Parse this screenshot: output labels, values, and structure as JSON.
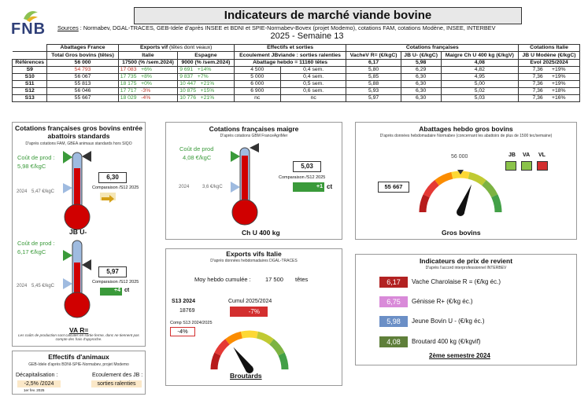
{
  "header": {
    "logo": "FNB",
    "title": "Indicateurs de marché viande bovine",
    "sources_label": "Sources",
    "sources_text": " : Normabev, DGAL-TRACES, GEB-Idele d'après INSEE et BDNI et SPIE-Normabev-Bovex (projet Modemo), cotations FAM, cotations Modène, INSEE, INTERBEV",
    "week": "2025 - Semaine 13"
  },
  "table": {
    "group_headers": {
      "abattages": "Abattages France",
      "exports": "Exports vif",
      "exports_sub": "(têtes dont veaux)",
      "effectifs": "Effectifs et sorties",
      "cot_fr": "Cotations françaises",
      "cot_it": "Cotations Italie"
    },
    "col_headers": {
      "abattages": "Total Gros bovins (têtes)",
      "italie": "Italie",
      "espagne": "Espagne",
      "ecoulement": "Ecoulement JBviande : sorties ralenties",
      "vache": "VacheV R= (€/kgC)",
      "jb": "JB U- (€/kgC)",
      "maigre": "Maigre Ch U 400 kg (€/kgV)",
      "modene": "JB U Modène (€/kgC)"
    },
    "ref": {
      "label": "Références",
      "abattages": "56 000",
      "italie": "17500 (% /sem.2024)",
      "espagne": "9000 (% /sem.2024)",
      "ecoulement": "Abattage hebdo = 11160 têtes",
      "vache": "6,17",
      "jb": "5,98",
      "maigre": "4,08",
      "modene": "Evol 2025/2024"
    },
    "rows": [
      {
        "s": "S9",
        "ab": "54 793",
        "it": "17 083",
        "itp": "+6%",
        "es": "9 691",
        "esp": "+14%",
        "e1": "4 500",
        "e2": "0,4 sem.",
        "v": "5,80",
        "jb": "6,29",
        "m": "4,82",
        "mo": "7,36",
        "mop": "+19%"
      },
      {
        "s": "S10",
        "ab": "56 067",
        "it": "17 735",
        "itp": "+8%",
        "es": "9 837",
        "esp": "+7%",
        "e1": "5 000",
        "e2": "0,4 sem.",
        "v": "5,85",
        "jb": "6,30",
        "m": "4,95",
        "mo": "7,36",
        "mop": "+19%"
      },
      {
        "s": "S11",
        "ab": "55 813",
        "it": "18 175",
        "itp": "+0%",
        "es": "10 447",
        "esp": "+21%",
        "e1": "6 000",
        "e2": "0,5 sem.",
        "v": "5,88",
        "jb": "6,30",
        "m": "5,00",
        "mo": "7,36",
        "mop": "+19%"
      },
      {
        "s": "S12",
        "ab": "56 046",
        "it": "17 717",
        "itp": "-3%",
        "es": "10 875",
        "esp": "+15%",
        "e1": "6 900",
        "e2": "0,6 sem.",
        "v": "5,93",
        "jb": "6,30",
        "m": "5,02",
        "mo": "7,36",
        "mop": "+18%"
      },
      {
        "s": "S13",
        "ab": "55 667",
        "it": "18 029",
        "itp": "-4%",
        "es": "10 776",
        "esp": "+21%",
        "e1": "nc",
        "e2": "nc",
        "v": "5,97",
        "jb": "6,30",
        "m": "5,03",
        "mo": "7,36",
        "mop": "+16%"
      }
    ]
  },
  "p1": {
    "title": "Cotations françaises gros bovins entrée abattoirs standards",
    "sub": "D'après cotations FAM, GBEA animaux standards hors SIQO",
    "jb": {
      "cout_label": "Coût de prod :",
      "cout_val": "5,98 €/kgC",
      "y2024": "2024",
      "y2024v": "5,47 €/kgC",
      "value": "6,30",
      "comp": "Comparaison /S12 2025",
      "label": "JB U-"
    },
    "va": {
      "cout_label": "Coût de prod :",
      "cout_val": "6,17 €/kgC",
      "y2024": "2024",
      "y2024v": "5,45 €/kgC",
      "value": "5,97",
      "comp": "Comparaison /S12 2025",
      "delta": "+4",
      "unit": "ct",
      "label": "VA R="
    },
    "note": "Les coûts de production sont calculés en sortie ferme, donc ne tiennent pas compte des frais d'approche."
  },
  "p2": {
    "title": "Cotations françaises maigre",
    "sub": "D'après cotations GBM FranceAgriMer",
    "cout_label": "Coût de prod",
    "cout_val": "4,08 €/kgC",
    "y2024": "2024",
    "y2024v": "3,6 €/kgC",
    "value": "5,03",
    "comp": "Comparaison /S12 2025",
    "delta": "+1",
    "unit": "ct",
    "label": "Ch U 400 kg"
  },
  "p3": {
    "title": "Abattages hebdo gros bovins",
    "sub": "D'après données hebdomadaire Normabev (concernant les abattoirs de plus de 1500 tec/semaine)",
    "ref": "56 000",
    "value": "55 667",
    "label": "Gros bovins",
    "legend": [
      "JB",
      "VA",
      "VL"
    ],
    "gauge_fraction": 0.62
  },
  "p4": {
    "title": "Exports vifs  Italie",
    "sub": "D'après données hebdomadaires DGAL-TRACES",
    "cumul_label": "Moy hebdo cumulée :",
    "cumul_val": "17 500",
    "cumul_unit": "têtes",
    "s13_label": "S13 2024",
    "s13_val": "18769",
    "cumul25_label": "Cumul 2025/2024",
    "cumul25_val": "-7%",
    "comp_label": "Comp S13 2024/2025",
    "comp_val": "-4%",
    "label": "Broutards",
    "gauge_fraction": 0.3
  },
  "p5": {
    "title": "Indicateurs de prix de revient",
    "sub": "D'après l'accord interprofessionnel INTERBEV",
    "items": [
      {
        "val": "6,17",
        "label": "Vache Charolaise R = (€/kg éc.)",
        "color": "#b22222"
      },
      {
        "val": "6,75",
        "label": "Génisse R+ (€/kg éc.)",
        "color": "#d98ad9"
      },
      {
        "val": "5,98",
        "label": "Jeune Bovin U - (€/kg éc.)",
        "color": "#6b8fc6"
      },
      {
        "val": "4,08",
        "label": "Broutard 400 kg (€/kgvif)",
        "color": "#5f7f3a"
      }
    ],
    "semester": "2ème semestre 2024"
  },
  "p6": {
    "title": "Effectifs d'animaux",
    "sub": "GEB-Idele d'après BDNI-SPIE-Normabev, projet Modemo",
    "dec_label": "Décapitalisation :",
    "dec_val": "-2,5% /2024",
    "date": "1er fev. 2025",
    "ecou_label": "Ecoulement des JB :",
    "ecou_val": "sorties ralenties"
  }
}
